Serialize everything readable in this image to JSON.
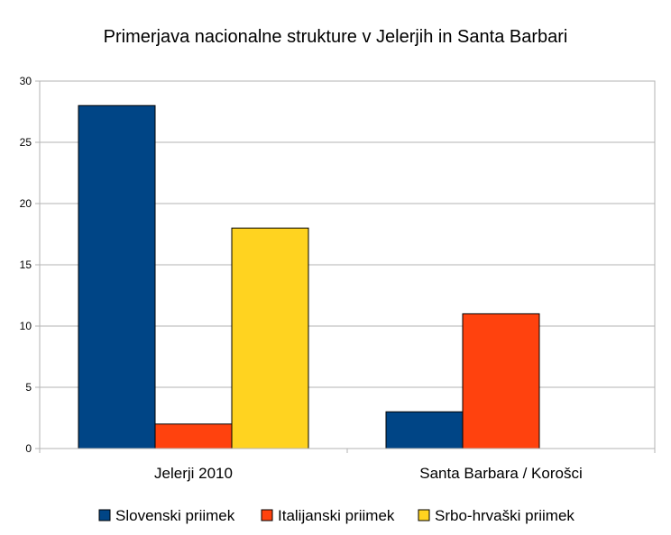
{
  "chart_data": {
    "type": "bar",
    "title": "Primerjava nacionalne strukture v Jelerjih in Santa Barbari",
    "xlabel": "",
    "ylabel": "",
    "categories": [
      "Jelerji 2010",
      "Santa Barbara / Korošci"
    ],
    "series": [
      {
        "name": "Slovenski priimek",
        "values": [
          28,
          3
        ],
        "color": "#004586"
      },
      {
        "name": "Italijanski priimek",
        "values": [
          2,
          11
        ],
        "color": "#ff420e"
      },
      {
        "name": "Srbo-hrvaški priimek",
        "values": [
          18,
          0
        ],
        "color": "#ffd320"
      }
    ],
    "ylim": [
      0,
      30
    ],
    "yticks": [
      0,
      5,
      10,
      15,
      20,
      25,
      30
    ],
    "grid": true,
    "legend": "bottom"
  }
}
